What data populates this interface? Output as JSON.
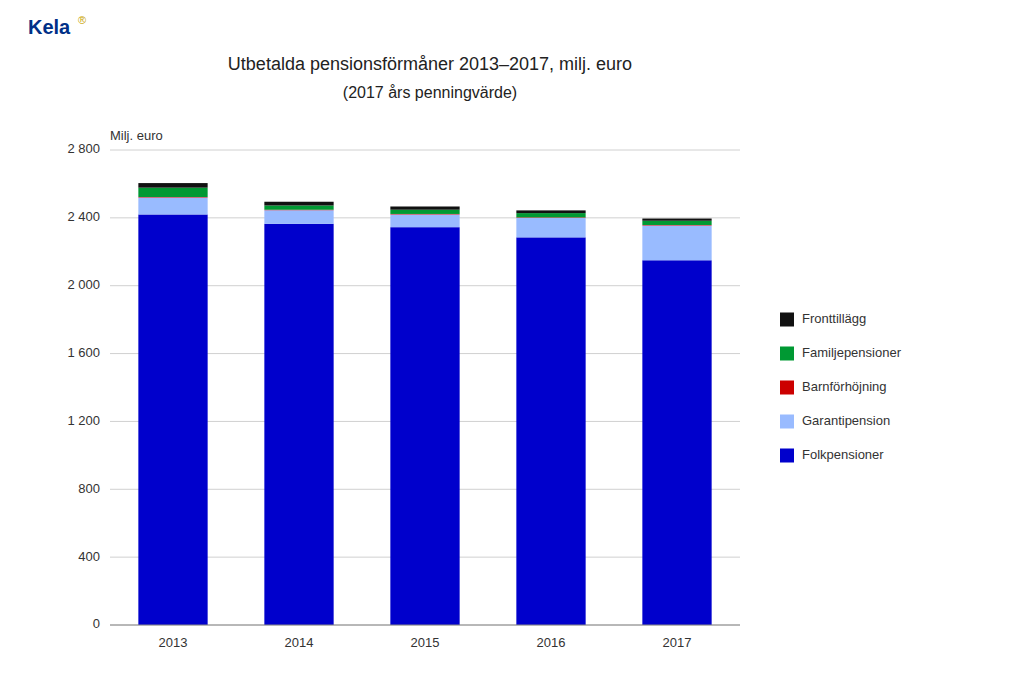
{
  "chart_data": {
    "type": "bar",
    "stacked": true,
    "title": "Utbetalda pensionsförmåner 2013–2017, milj. euro",
    "subtitle": "(2017 års penningvärde)",
    "ylabel": "Milj. euro",
    "annotations": [
      "Kela",
      "®"
    ],
    "categories": [
      "2013",
      "2014",
      "2015",
      "2016",
      "2017"
    ],
    "series": [
      {
        "name": "Folkpensioner",
        "color": "#0000CC",
        "values": [
          2420,
          2365,
          2345,
          2285,
          2150
        ]
      },
      {
        "name": "Garantipension",
        "color": "#99BBFF",
        "values": [
          100,
          80,
          75,
          115,
          205
        ]
      },
      {
        "name": "Barnförhöjning",
        "color": "#CC0000",
        "values": [
          3,
          3,
          3,
          3,
          3
        ]
      },
      {
        "name": "Familjepensioner",
        "color": "#009933",
        "values": [
          55,
          25,
          25,
          25,
          25
        ]
      },
      {
        "name": "Fronttillägg",
        "color": "#111111",
        "values": [
          27,
          22,
          19,
          16,
          13
        ]
      }
    ],
    "ylim": [
      0,
      2800
    ],
    "yticks": [
      0,
      400,
      800,
      {
        "value": 1200,
        "label": "1 200"
      },
      {
        "value": 1600,
        "label": "1 600"
      },
      {
        "value": 2000,
        "label": "2 000"
      },
      {
        "value": 2400,
        "label": "2 400"
      },
      {
        "value": 2800,
        "label": "2 800"
      }
    ],
    "grid": true,
    "legend": "right"
  }
}
